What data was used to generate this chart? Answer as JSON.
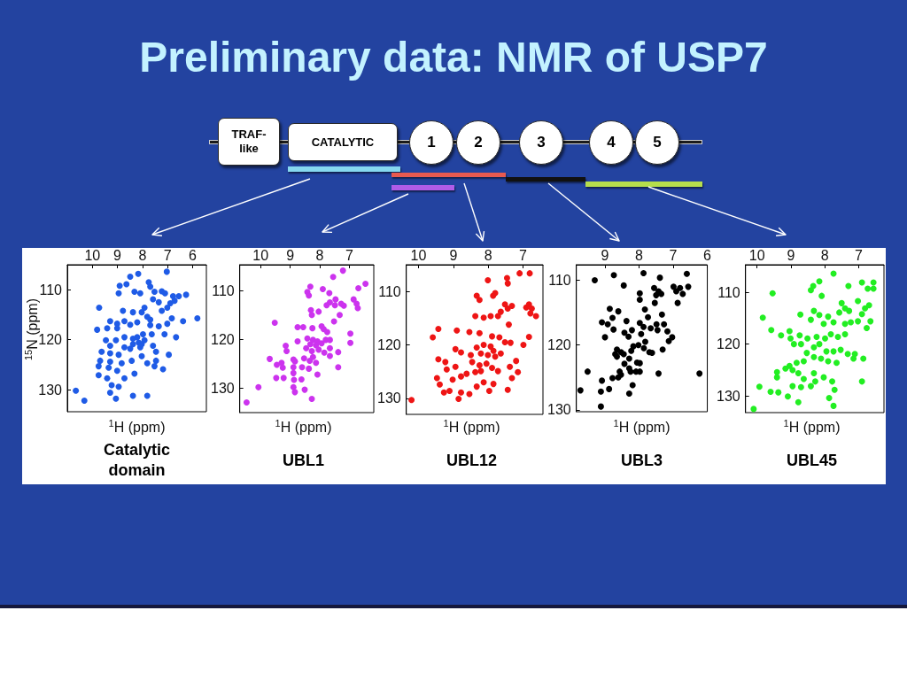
{
  "chart_data": [
    {
      "type": "other",
      "title": "Preliminary data: NMR of USP7",
      "annotations": [
        "TRAF-like",
        "CATALYTIC",
        "1",
        "2",
        "3",
        "4",
        "5"
      ]
    },
    {
      "type": "scatter",
      "title": "Catalytic domain",
      "xlabel": "$^{1}$H (ppm)",
      "ylabel": "$^{15}$N (ppm)",
      "color": "#1f5be6",
      "marker": "circle",
      "xlim": [
        11,
        5.45
      ],
      "ylim": [
        134.4,
        105
      ],
      "xticks": [
        10,
        9,
        8,
        7,
        6
      ],
      "yticks": [
        110,
        120,
        130
      ],
      "x": [
        8.17,
        8.49,
        8.64,
        8.91,
        8.95,
        8.32,
        8.09,
        7.69,
        7.75,
        7.03,
        7.52,
        7.23,
        7.1,
        6.78,
        6.89,
        6.72,
        6.55,
        6.26,
        7.58,
        7.35,
        7.92,
        8.03,
        8.38,
        8.78,
        8.72,
        9.01,
        9.29,
        9.73,
        9.81,
        9.41,
        9.01,
        8.49,
        8.21,
        7.69,
        7.35,
        7.01,
        6.38,
        5.81,
        6.66,
        7.12,
        7.63,
        7.92,
        8.15,
        8.09,
        8.38,
        8.72,
        9.06,
        9.29,
        9.46,
        8.72,
        8.49,
        8.95,
        9.29,
        9.63,
        9.69,
        9.75,
        9.29,
        8.83,
        8.43,
        8.03,
        7.58,
        6.95,
        7.46,
        7.18,
        7.52,
        7.81,
        8.32,
        8.72,
        9.01,
        9.35,
        9.75,
        9.41,
        9.23,
        8.95,
        9.29,
        9.06,
        8.38,
        7.81,
        10.66,
        10.32,
        7.46,
        7.69,
        6.83,
        7.23,
        7.01,
        7.81,
        8.21,
        8.03,
        8.38,
        7.98
      ],
      "values": [
        106.8,
        107.4,
        108.9,
        109.2,
        110.7,
        110.4,
        110.7,
        109.4,
        108.5,
        106.4,
        110.4,
        110.3,
        110.7,
        111.3,
        112.7,
        112.2,
        111.3,
        111.0,
        111.9,
        112.5,
        113.6,
        114.5,
        114.5,
        114.2,
        116.3,
        116.8,
        116.3,
        113.6,
        118.0,
        117.7,
        117.7,
        117.0,
        116.5,
        117.1,
        117.3,
        116.8,
        116.3,
        115.7,
        119.5,
        118.9,
        118.9,
        120.1,
        120.6,
        121.5,
        119.8,
        119.5,
        120.1,
        121.2,
        120.1,
        121.5,
        121.8,
        123.0,
        122.7,
        122.4,
        124.2,
        125.3,
        124.4,
        124.7,
        124.2,
        123.3,
        121.2,
        123.0,
        124.2,
        125.9,
        125.3,
        124.7,
        126.8,
        127.7,
        126.2,
        125.6,
        127.1,
        127.7,
        129.1,
        129.4,
        130.6,
        131.8,
        131.2,
        131.2,
        130.2,
        132.2,
        122.4,
        116.0,
        115.7,
        114.2,
        113.6,
        115.4,
        119.5,
        120.9,
        120.9,
        118.9
      ]
    },
    {
      "type": "scatter",
      "title": "UBL1",
      "xlabel": "$^{1}$H (ppm)",
      "color": "#cc33ee",
      "marker": "circle",
      "xlim": [
        10.7,
        6.18
      ],
      "ylim": [
        135,
        104.7
      ],
      "xticks": [
        10,
        9,
        8,
        7
      ],
      "yticks": [
        110,
        120,
        130
      ],
      "x": [
        7.22,
        7.55,
        6.46,
        6.7,
        7.9,
        8.32,
        8.42,
        8.37,
        7.68,
        7.47,
        7.66,
        7.49,
        7.28,
        6.86,
        6.76,
        6.72,
        7.19,
        7.77,
        8.3,
        8.04,
        8.27,
        7.33,
        7.52,
        9.52,
        8.75,
        8.56,
        8.25,
        7.94,
        7.87,
        7.75,
        6.97,
        6.97,
        8.75,
        9.15,
        8.42,
        8.23,
        8.08,
        8.32,
        8.13,
        7.94,
        7.8,
        7.66,
        8.46,
        8.27,
        8.04,
        7.85,
        7.66,
        7.38,
        7.66,
        8.53,
        8.34,
        8.23,
        8.13,
        7.38,
        9.69,
        9.29,
        9.25,
        9.45,
        8.89,
        8.84,
        8.89,
        8.6,
        8.37,
        8.89,
        8.08,
        9.47,
        9.22,
        8.87,
        8.62,
        8.89,
        8.84,
        8.51,
        10.07,
        8.27,
        10.47,
        9.12
      ],
      "values": [
        105.9,
        107.2,
        108.6,
        109.5,
        109.7,
        109.2,
        110.3,
        111.0,
        110.5,
        111.8,
        112.4,
        113.0,
        112.7,
        111.8,
        112.7,
        113.6,
        113.1,
        113.0,
        114.0,
        114.3,
        115.0,
        115.0,
        116.3,
        116.6,
        117.5,
        117.5,
        117.7,
        117.3,
        117.9,
        118.5,
        118.8,
        120.7,
        120.4,
        121.3,
        119.8,
        120.1,
        120.4,
        121.0,
        121.2,
        120.8,
        120.1,
        120.1,
        121.8,
        122.4,
        122.1,
        122.7,
        121.8,
        122.6,
        123.4,
        123.9,
        124.4,
        123.6,
        124.8,
        125.7,
        124.0,
        124.8,
        125.8,
        125.2,
        124.1,
        124.5,
        125.7,
        125.7,
        126.0,
        126.9,
        127.2,
        127.9,
        127.9,
        128.3,
        128.2,
        129.8,
        130.8,
        130.3,
        129.8,
        132.2,
        132.9,
        122.4
      ]
    },
    {
      "type": "scatter",
      "title": "UBL12",
      "xlabel": "$^{1}$H (ppm)",
      "color": "#ee1515",
      "marker": "circle",
      "xlim": [
        10.35,
        6.43
      ],
      "ylim": [
        133,
        105
      ],
      "xticks": [
        10,
        9,
        8,
        7
      ],
      "yticks": [
        110,
        120,
        130
      ],
      "x": [
        6.81,
        7.1,
        7.46,
        8.01,
        7.44,
        8.33,
        7.86,
        7.8,
        8.25,
        7.52,
        7.44,
        7.64,
        7.32,
        6.83,
        6.75,
        6.79,
        6.91,
        6.63,
        7.72,
        8.37,
        8.13,
        7.93,
        7.41,
        9.43,
        9.59,
        8.9,
        8.54,
        8.25,
        7.89,
        7.68,
        7.52,
        7.36,
        6.83,
        6.99,
        8.33,
        8.13,
        7.93,
        7.85,
        8.21,
        8.01,
        7.8,
        7.64,
        8.5,
        8.78,
        8.94,
        8.46,
        8.25,
        8.05,
        7.89,
        8.21,
        8.37,
        8.62,
        8.78,
        8.94,
        9.23,
        9.43,
        9.19,
        9.02,
        9.47,
        9.39,
        9.11,
        8.78,
        8.54,
        8.33,
        8.13,
        7.85,
        7.97,
        7.44,
        7.32,
        7.15,
        7.2,
        7.38,
        10.2,
        9.27,
        8.85,
        7.72
      ],
      "values": [
        106.6,
        106.6,
        107.5,
        107.9,
        108.5,
        110.8,
        110.8,
        110.3,
        111.6,
        112.4,
        113.2,
        113.8,
        112.7,
        112.4,
        113.2,
        114.1,
        113.0,
        114.6,
        114.6,
        114.6,
        114.9,
        114.6,
        116.2,
        117.0,
        118.6,
        117.3,
        117.6,
        117.8,
        118.4,
        118.6,
        119.5,
        119.6,
        118.5,
        120.0,
        120.5,
        120.0,
        120.3,
        121.1,
        121.6,
        121.9,
        122.2,
        121.6,
        121.9,
        121.4,
        120.8,
        123.2,
        123.8,
        123.5,
        124.3,
        124.9,
        125.1,
        125.4,
        125.9,
        124.1,
        123.2,
        122.7,
        124.6,
        126.5,
        126.2,
        127.4,
        128.6,
        128.9,
        129.2,
        127.8,
        127.0,
        127.3,
        128.6,
        128.4,
        126.2,
        125.1,
        123.0,
        124.1,
        130.3,
        128.9,
        130.1,
        124.9
      ]
    },
    {
      "type": "scatter",
      "title": "UBL3",
      "xlabel": "$^{1}$H (ppm)",
      "color": "#000000",
      "marker": "circle",
      "xlim": [
        9.84,
        6.0
      ],
      "ylim": [
        130.3,
        107.6
      ],
      "xticks": [
        9,
        8,
        7,
        6
      ],
      "yticks": [
        110,
        120,
        130
      ],
      "x": [
        9.3,
        8.74,
        7.87,
        8.45,
        7.98,
        7.98,
        7.56,
        7.43,
        7.35,
        7.5,
        7.54,
        7.39,
        6.99,
        6.91,
        6.8,
        6.72,
        6.87,
        6.6,
        6.56,
        8.86,
        8.61,
        8.78,
        7.83,
        7.74,
        8.37,
        9.09,
        8.92,
        8.75,
        7.98,
        7.87,
        7.66,
        7.49,
        7.27,
        7.17,
        7.46,
        8.21,
        8.43,
        7.94,
        7.33,
        8.31,
        9.0,
        7.03,
        7.13,
        7.82,
        7.86,
        8.02,
        8.17,
        8.23,
        7.7,
        7.62,
        7.31,
        8.65,
        8.53,
        8.7,
        8.45,
        8.65,
        8.43,
        8.29,
        8.06,
        7.98,
        8.29,
        8.57,
        8.53,
        8.61,
        8.25,
        8.09,
        7.98,
        7.43,
        8.78,
        9.09,
        9.51,
        9.12,
        8.88,
        8.29,
        8.19,
        9.72,
        9.12,
        6.23
      ],
      "values": [
        110.0,
        109.2,
        108.9,
        110.8,
        112.0,
        113.0,
        111.2,
        111.7,
        112.1,
        112.3,
        113.5,
        109.6,
        111.0,
        111.7,
        111.2,
        112.1,
        113.5,
        109.0,
        111.0,
        114.4,
        114.8,
        115.8,
        114.5,
        115.7,
        116.3,
        116.5,
        116.8,
        117.6,
        116.6,
        117.2,
        117.4,
        116.8,
        116.8,
        117.9,
        117.7,
        117.7,
        118.1,
        118.3,
        115.3,
        118.7,
        118.8,
        118.8,
        119.4,
        119.5,
        120.5,
        120.0,
        120.2,
        120.9,
        121.1,
        121.2,
        120.7,
        120.7,
        121.1,
        121.4,
        121.4,
        121.8,
        122.9,
        122.1,
        122.7,
        122.8,
        123.6,
        124.1,
        124.6,
        125.0,
        124.1,
        124.1,
        124.1,
        124.4,
        125.1,
        125.5,
        124.1,
        127.2,
        126.8,
        127.5,
        126.2,
        127.0,
        129.5,
        124.4
      ]
    },
    {
      "type": "scatter",
      "title": "UBL45",
      "xlabel": "$^{1}$H (ppm)",
      "color": "#22ee22",
      "marker": "circle",
      "xlim": [
        10.34,
        6.25
      ],
      "ylim": [
        133.2,
        104.7
      ],
      "xticks": [
        10,
        9,
        8,
        7
      ],
      "yticks": [
        110,
        120,
        130
      ],
      "x": [
        7.74,
        8.16,
        8.34,
        8.41,
        8.09,
        7.3,
        9.54,
        6.9,
        6.56,
        6.73,
        6.56,
        7.02,
        7.5,
        7.4,
        7.28,
        7.57,
        6.81,
        6.69,
        6.9,
        7.02,
        7.23,
        7.4,
        6.65,
        6.76,
        9.83,
        9.58,
        8.72,
        8.32,
        8.16,
        8.41,
        7.9,
        8.03,
        7.74,
        9.29,
        9.04,
        9.01,
        8.74,
        8.51,
        8.24,
        7.99,
        7.82,
        7.61,
        7.4,
        8.7,
        8.91,
        8.32,
        8.16,
        7.95,
        7.74,
        7.53,
        7.32,
        7.11,
        7.15,
        6.86,
        8.53,
        8.32,
        8.11,
        7.9,
        7.65,
        8.62,
        8.83,
        9.04,
        9.16,
        8.95,
        8.78,
        8.62,
        8.32,
        8.28,
        8.03,
        7.78,
        8.41,
        8.7,
        8.95,
        9.41,
        9.41,
        9.93,
        9.6,
        9.37,
        9.09,
        8.78,
        7.87,
        7.74,
        7.71,
        6.9,
        10.1
      ],
      "values": [
        106.4,
        107.9,
        108.8,
        109.6,
        110.7,
        108.8,
        110.2,
        108.1,
        108.1,
        109.3,
        109.3,
        111.7,
        112.1,
        113.1,
        113.6,
        113.9,
        113.1,
        112.5,
        114.2,
        115.6,
        115.8,
        116.1,
        115.6,
        116.9,
        114.9,
        117.3,
        114.3,
        113.6,
        114.4,
        115.3,
        114.7,
        116.1,
        115.8,
        118.3,
        117.5,
        118.9,
        118.3,
        118.9,
        118.6,
        118.9,
        118.1,
        118.6,
        118.1,
        120.0,
        120.0,
        120.6,
        120.0,
        121.4,
        121.4,
        121.1,
        121.9,
        121.9,
        122.8,
        122.8,
        121.7,
        122.5,
        122.8,
        123.3,
        123.6,
        123.3,
        123.6,
        124.2,
        124.7,
        125.0,
        125.6,
        126.7,
        125.6,
        127.2,
        126.4,
        127.2,
        128.1,
        128.3,
        128.1,
        125.4,
        126.4,
        128.2,
        129.2,
        129.3,
        130.1,
        131.2,
        130.4,
        131.9,
        128.8,
        127.2,
        132.5
      ]
    }
  ]
}
